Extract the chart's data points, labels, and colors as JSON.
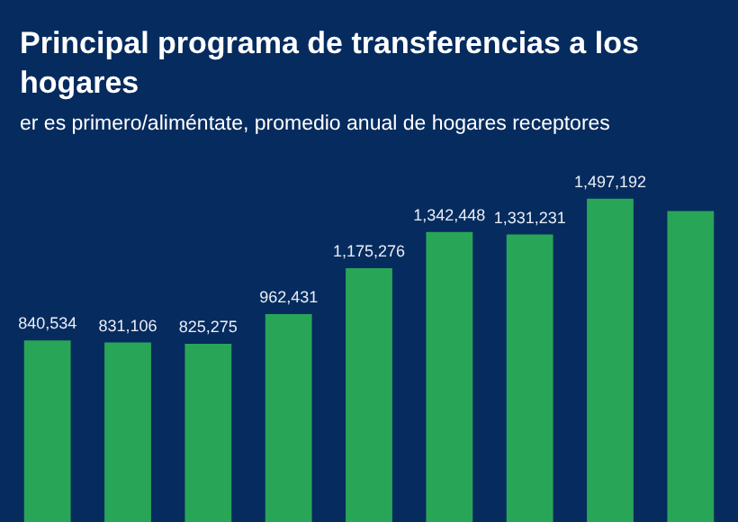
{
  "chart_data": {
    "type": "bar",
    "title": "Principal programa de transferencias a los hogares",
    "subtitle": "er es primero/aliméntate, promedio anual de hogares receptores",
    "categories": [
      null,
      null,
      null,
      null,
      null,
      null,
      null,
      null,
      null
    ],
    "values": [
      840534,
      831106,
      825275,
      962431,
      1175276,
      1342448,
      1331231,
      1497192,
      1440000
    ],
    "value_labels": [
      "840,534",
      "831,106",
      "825,275",
      "962,431",
      "1,175,276",
      "1,342,448",
      "1,331,231",
      "1,497,192",
      null
    ],
    "color": "#29a557"
  }
}
